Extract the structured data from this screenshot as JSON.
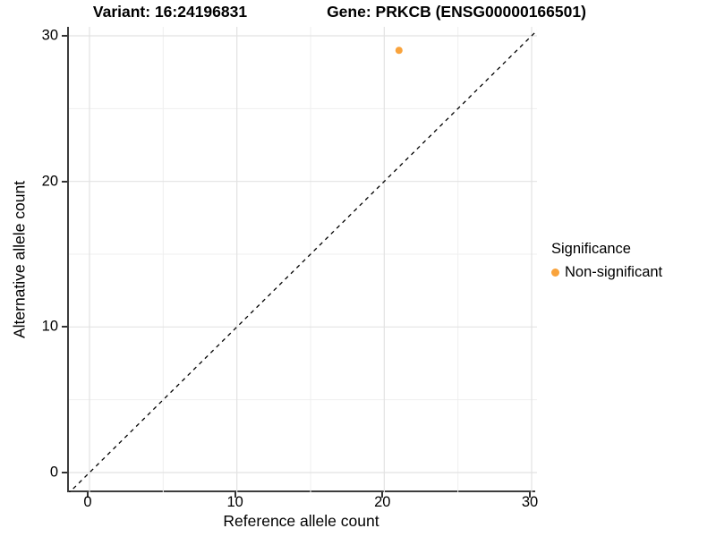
{
  "titles": {
    "variant": "Variant: 16:24196831",
    "gene": "Gene: PRKCB (ENSG00000166501)"
  },
  "axes": {
    "x": {
      "label": "Reference allele count",
      "ticks": [
        "0",
        "10",
        "20",
        "30"
      ]
    },
    "y": {
      "label": "Alternative allele count",
      "ticks": [
        "0",
        "10",
        "20",
        "30"
      ]
    }
  },
  "legend": {
    "title": "Significance",
    "items": [
      {
        "label": "Non-significant",
        "color": "#F9A33C"
      }
    ]
  },
  "chart_data": {
    "type": "scatter",
    "title": "Variant: 16:24196831 — Gene: PRKCB (ENSG00000166501)",
    "xlabel": "Reference allele count",
    "ylabel": "Alternative allele count",
    "xlim": [
      -1.5,
      31.5
    ],
    "ylim": [
      -1.5,
      31.5
    ],
    "x_ticks": [
      0,
      10,
      20,
      30
    ],
    "y_ticks": [
      0,
      10,
      20,
      30
    ],
    "grid": true,
    "legend_position": "right",
    "series": [
      {
        "name": "Non-significant",
        "color": "#F9A33C",
        "points": [
          {
            "x": 21,
            "y": 29
          }
        ]
      }
    ],
    "reference_line": {
      "type": "identity",
      "style": "dashed",
      "color": "#000000",
      "from": [
        -1.5,
        -1.5
      ],
      "to": [
        31.5,
        31.5
      ]
    }
  }
}
